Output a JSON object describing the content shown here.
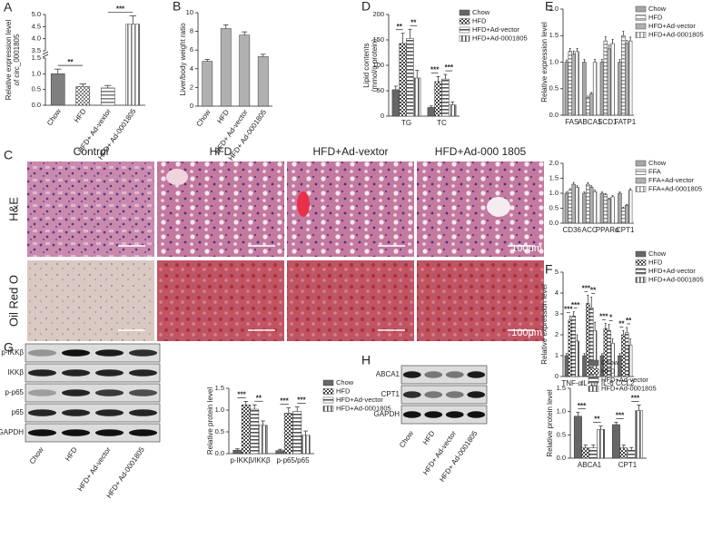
{
  "panel_labels": [
    "A",
    "B",
    "C",
    "D",
    "E",
    "F",
    "G",
    "H"
  ],
  "histology": {
    "columns": [
      "Control",
      "HFD",
      "HFD+Ad-vextor",
      "HFD+Ad-000 1805"
    ],
    "rows": [
      "H&E",
      "Oil Red O"
    ],
    "scale": "100μm"
  },
  "blots": [
    {
      "rows": [
        "p-IKKβ",
        "IKKβ",
        "p-p65",
        "p65",
        "GAPDH"
      ],
      "lanes": [
        "Chow",
        "HFD",
        "HFD+ Ad-vector",
        "HFD+ Ad-0001805"
      ]
    },
    {
      "rows": [
        "ABCA1",
        "CPT1",
        "GAPDH"
      ],
      "lanes": [
        "Chow",
        "HFD",
        "HFD+ Ad-vector",
        "HFD+ Ad-0001805"
      ]
    }
  ],
  "chart_data": [
    {
      "type": "bar",
      "ylabel": [
        "Relative expression level",
        "of circ_0001805"
      ],
      "categories": [
        "Chow",
        "HFD",
        "HFD+ Ad-vextor",
        "HFD+ Ad-0001805"
      ],
      "values": [
        1.0,
        0.6,
        0.55,
        4.6
      ],
      "errors": [
        0.15,
        0.08,
        0.08,
        0.35
      ],
      "color": "#7f7f7f",
      "fills": [
        "solid",
        "checker",
        "hstripe",
        "vstripe"
      ],
      "ylim": [
        0,
        5
      ],
      "ybreak": [
        1.5,
        3.5
      ],
      "yticks": [
        {
          "value": 0,
          "label": "0.0"
        },
        {
          "value": 0.5,
          "label": "0.5"
        },
        {
          "value": 1,
          "label": "1.0"
        },
        {
          "value": 1.5,
          "label": "1.5"
        },
        {
          "value": 3.5,
          "label": "3.5"
        },
        {
          "value": 4,
          "label": "4.0"
        },
        {
          "value": 4.5,
          "label": "4.5"
        },
        {
          "value": 5,
          "label": "5.0"
        }
      ],
      "annotations": [
        "**",
        "***"
      ]
    },
    {
      "type": "bar",
      "ylabel": [
        "Liver/body weight ratio"
      ],
      "categories": [
        "Chow",
        "HFD",
        "HFD+ Ad-vector",
        "HFD+ Ad-0001805"
      ],
      "values": [
        4.8,
        8.3,
        7.6,
        5.3
      ],
      "errors": [
        0.2,
        0.4,
        0.35,
        0.25
      ],
      "color": "#b0b0b0",
      "ylim": [
        0,
        10
      ],
      "yticks": [
        0,
        2,
        4,
        6,
        8,
        10
      ]
    },
    {
      "type": "bar",
      "ylabel": [
        "Lipid contents",
        "(mmol/g protein)"
      ],
      "categories": [
        "TG",
        "TC"
      ],
      "series": [
        {
          "name": "Chow",
          "color": "#666666",
          "pattern": "solid",
          "values": [
            52,
            17
          ],
          "errors": [
            7,
            3
          ]
        },
        {
          "name": "HFD",
          "color": "#444444",
          "pattern": "checker",
          "values": [
            143,
            68
          ],
          "errors": [
            20,
            10
          ]
        },
        {
          "name": "HFD+Ad-vector",
          "color": "#555555",
          "pattern": "hstripe",
          "values": [
            153,
            73
          ],
          "errors": [
            18,
            9
          ]
        },
        {
          "name": "HFD+Ad-0001805",
          "color": "#555555",
          "pattern": "vstripe",
          "values": [
            75,
            22
          ],
          "errors": [
            15,
            6
          ]
        }
      ],
      "ylim": [
        0,
        200
      ],
      "yticks": [
        0,
        50,
        100,
        150,
        200
      ],
      "annotations": [
        "**",
        "**",
        "***",
        "***"
      ]
    },
    {
      "type": "bar",
      "ylabel": [
        "Relative expression level"
      ],
      "categories": [
        "FAS",
        "ABCA1",
        "SCD1",
        "FATP1"
      ],
      "series": [
        {
          "name": "Chow",
          "color": "#a6a6a6",
          "pattern": "solid",
          "values": [
            1.0,
            1.0,
            1.0,
            1.0
          ],
          "errors": [
            0.04,
            0.05,
            0.05,
            0.05
          ]
        },
        {
          "name": "HFD",
          "color": "#999999",
          "pattern": "hstripe",
          "values": [
            1.2,
            0.33,
            1.4,
            1.5
          ],
          "errors": [
            0.06,
            0.03,
            0.08,
            0.08
          ]
        },
        {
          "name": "HFD+Ad-vector",
          "color": "#b0b0b0",
          "pattern": "solid",
          "values": [
            1.15,
            0.4,
            1.25,
            1.35
          ],
          "errors": [
            0.06,
            0.03,
            0.07,
            0.06
          ]
        },
        {
          "name": "HFD+Ad-0001805",
          "color": "#999999",
          "pattern": "vstripe",
          "values": [
            1.2,
            1.0,
            1.35,
            1.4
          ],
          "errors": [
            0.06,
            0.05,
            0.08,
            0.07
          ]
        }
      ],
      "ylim": [
        0,
        2
      ],
      "yticks": [
        {
          "value": 0,
          "label": "0.0"
        },
        {
          "value": 0.5,
          "label": "0.5"
        },
        {
          "value": 1,
          "label": "1.0"
        },
        {
          "value": 1.5,
          "label": "1.5"
        },
        {
          "value": 2,
          "label": "2.0"
        }
      ]
    },
    {
      "type": "bar",
      "categories": [
        "CD36",
        "ACC",
        "PPARα",
        "CPT1"
      ],
      "series": [
        {
          "name": "Chow",
          "color": "#a6a6a6",
          "pattern": "solid",
          "values": [
            1.0,
            1.0,
            1.0,
            1.0
          ],
          "errors": [
            0.04,
            0.04,
            0.04,
            0.04
          ]
        },
        {
          "name": "FFA",
          "color": "#999999",
          "pattern": "hstripe",
          "values": [
            1.1,
            1.3,
            0.95,
            0.5
          ],
          "errors": [
            0.05,
            0.05,
            0.04,
            0.03
          ]
        },
        {
          "name": "FFA+Ad-vector",
          "color": "#b0b0b0",
          "pattern": "solid",
          "values": [
            1.3,
            1.2,
            0.8,
            0.6
          ],
          "errors": [
            0.06,
            0.05,
            0.04,
            0.03
          ]
        },
        {
          "name": "FFA+Ad-0001805",
          "color": "#999999",
          "pattern": "vstripe",
          "values": [
            1.2,
            1.05,
            0.88,
            1.1
          ],
          "errors": [
            0.05,
            0.05,
            0.04,
            0.05
          ]
        }
      ],
      "ylim": [
        0,
        2
      ],
      "yticks": [
        {
          "value": 0,
          "label": "0.0"
        },
        {
          "value": 0.5,
          "label": "0.5"
        },
        {
          "value": 1,
          "label": "1.0"
        },
        {
          "value": 1.5,
          "label": "1.5"
        },
        {
          "value": 2,
          "label": "2.0"
        }
      ]
    },
    {
      "type": "bar",
      "ylabel": [
        "Relative expression level"
      ],
      "categories": [
        "TNF-α",
        "IL-1β",
        "IL-6",
        "CCL2"
      ],
      "series": [
        {
          "name": "Chow",
          "color": "#666666",
          "pattern": "solid",
          "values": [
            1.0,
            1.0,
            1.0,
            1.0
          ],
          "errors": [
            0.1,
            0.1,
            0.1,
            0.1
          ]
        },
        {
          "name": "HFD",
          "color": "#444444",
          "pattern": "checker",
          "values": [
            2.7,
            3.5,
            2.3,
            2.0
          ],
          "errors": [
            0.2,
            0.4,
            0.25,
            0.2
          ]
        },
        {
          "name": "HFD+Ad-vector",
          "color": "#555555",
          "pattern": "hstripe",
          "values": [
            2.9,
            3.3,
            2.2,
            2.1
          ],
          "errors": [
            0.2,
            0.5,
            0.3,
            0.25
          ]
        },
        {
          "name": "HFD+Ad-0001805",
          "color": "#555555",
          "pattern": "vstripe",
          "values": [
            1.7,
            2.2,
            1.6,
            1.5
          ],
          "errors": [
            0.3,
            0.4,
            0.2,
            0.3
          ]
        }
      ],
      "ylim": [
        0,
        5
      ],
      "yticks": [
        0,
        1,
        2,
        3,
        4,
        5
      ],
      "annotations": [
        "***",
        "***",
        "***",
        "**",
        "***",
        "*",
        "**",
        "**"
      ]
    },
    {
      "type": "bar",
      "ylabel": [
        "Relative protein level"
      ],
      "categories": [
        "p-IKKβ/IKKβ",
        "p-p65/p65"
      ],
      "series": [
        {
          "name": "Chow",
          "color": "#666666",
          "pattern": "solid",
          "values": [
            0.08,
            0.07
          ],
          "errors": [
            0.03,
            0.03
          ]
        },
        {
          "name": "HFD",
          "color": "#444444",
          "pattern": "checker",
          "values": [
            1.12,
            0.93
          ],
          "errors": [
            0.08,
            0.12
          ]
        },
        {
          "name": "HFD+Ad-vector",
          "color": "#555555",
          "pattern": "hstripe",
          "values": [
            1.02,
            0.97
          ],
          "errors": [
            0.1,
            0.1
          ]
        },
        {
          "name": "HFD+Ad-0001805",
          "color": "#555555",
          "pattern": "vstripe",
          "values": [
            0.65,
            0.42
          ],
          "errors": [
            0.1,
            0.1
          ]
        }
      ],
      "ylim": [
        0,
        1.5
      ],
      "yticks": [
        {
          "value": 0,
          "label": "0.0"
        },
        {
          "value": 0.5,
          "label": "0.5"
        },
        {
          "value": 1,
          "label": "1.0"
        },
        {
          "value": 1.5,
          "label": "1.5"
        }
      ],
      "annotations": [
        "***",
        "**",
        "***",
        "***"
      ]
    },
    {
      "type": "bar",
      "ylabel": [
        "Relative protein level"
      ],
      "categories": [
        "ABCA1",
        "CPT1"
      ],
      "series": [
        {
          "name": "Chow",
          "color": "#666666",
          "pattern": "solid",
          "values": [
            0.9,
            0.72
          ],
          "errors": [
            0.08,
            0.05
          ]
        },
        {
          "name": "HFD",
          "color": "#444444",
          "pattern": "checker",
          "values": [
            0.22,
            0.22
          ],
          "errors": [
            0.06,
            0.06
          ]
        },
        {
          "name": "HFD+Ad-vector",
          "color": "#555555",
          "pattern": "hstripe",
          "values": [
            0.22,
            0.17
          ],
          "errors": [
            0.06,
            0.06
          ]
        },
        {
          "name": "HFD+Ad-0001805",
          "color": "#555555",
          "pattern": "vstripe",
          "values": [
            0.62,
            1.02
          ],
          "errors": [
            0.07,
            0.12
          ]
        }
      ],
      "ylim": [
        0,
        1.5
      ],
      "yticks": [
        {
          "value": 0,
          "label": "0.0"
        },
        {
          "value": 0.5,
          "label": "0.5"
        },
        {
          "value": 1,
          "label": "1.0"
        },
        {
          "value": 1.5,
          "label": "1.5"
        }
      ],
      "annotations": [
        "***",
        "**",
        "***",
        "***"
      ]
    }
  ]
}
